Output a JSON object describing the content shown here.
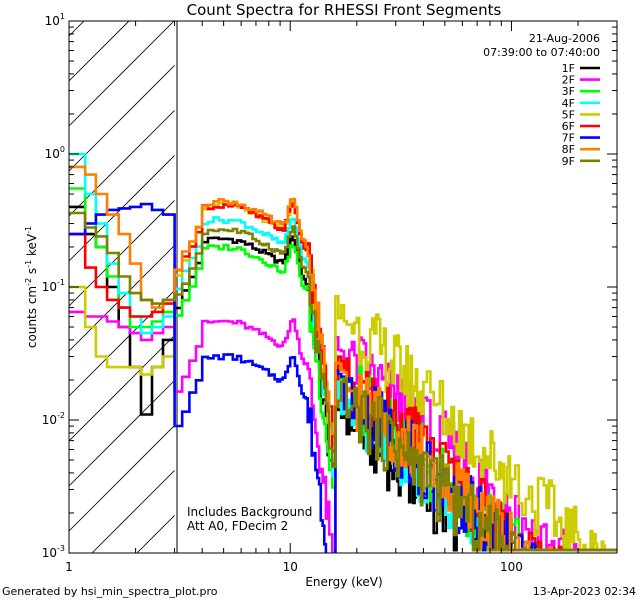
{
  "chart_data": {
    "type": "line",
    "title": "Count Spectra for RHESSI Front Segments",
    "xlabel": "Energy (keV)",
    "ylabel_parts": [
      "counts cm",
      "-2",
      " s",
      "-1",
      " keV",
      "-1"
    ],
    "x_scale": "log",
    "y_scale": "log",
    "xlim": [
      1,
      300
    ],
    "ylim": [
      0.001,
      10
    ],
    "x_tick_labels": [
      {
        "value": 1,
        "label": "1"
      },
      {
        "value": 10,
        "label": "10"
      },
      {
        "value": 100,
        "label": "100"
      }
    ],
    "y_tick_labels": [
      {
        "value": 0.001,
        "base": "10",
        "exp": "-3"
      },
      {
        "value": 0.01,
        "base": "10",
        "exp": "-2"
      },
      {
        "value": 0.1,
        "base": "10",
        "exp": "-1"
      },
      {
        "value": 1,
        "base": "10",
        "exp": "0"
      },
      {
        "value": 10,
        "base": "10",
        "exp": "1"
      }
    ],
    "hatched_region_kev": [
      1,
      3
    ],
    "date": "21-Aug-2006",
    "time_range": "07:39:00 to 07:40:00",
    "annotations": [
      "Includes Background",
      "Att A0, FDecim 2"
    ],
    "series": [
      {
        "name": "1F",
        "color": "#000000"
      },
      {
        "name": "2F",
        "color": "#ff00ff"
      },
      {
        "name": "3F",
        "color": "#00ff00"
      },
      {
        "name": "4F",
        "color": "#00ffff"
      },
      {
        "name": "5F",
        "color": "#cccc00"
      },
      {
        "name": "6F",
        "color": "#ff0000"
      },
      {
        "name": "7F",
        "color": "#0000ff"
      },
      {
        "name": "8F",
        "color": "#ff8000"
      },
      {
        "name": "9F",
        "color": "#808000"
      }
    ],
    "low_energy_kev": [
      1.12,
      1.25,
      1.4,
      1.58,
      1.78,
      2.0,
      2.24,
      2.51,
      2.82
    ],
    "low_energy_values": {
      "1F": [
        0.4,
        0.25,
        0.2,
        0.1,
        0.05,
        0.025,
        0.011,
        0.025,
        0.04
      ],
      "2F": [
        0.065,
        0.06,
        0.06,
        0.055,
        0.05,
        0.045,
        0.04,
        0.045,
        0.05
      ],
      "3F": [
        0.55,
        0.3,
        0.2,
        0.12,
        0.07,
        0.05,
        0.05,
        0.055,
        0.065
      ],
      "4F": [
        1.0,
        0.5,
        0.3,
        0.15,
        0.09,
        0.06,
        0.045,
        0.05,
        0.06
      ],
      "5F": [
        0.1,
        0.05,
        0.03,
        0.025,
        0.025,
        0.025,
        0.022,
        0.025,
        0.03
      ],
      "6F": [
        0.25,
        0.14,
        0.1,
        0.08,
        0.07,
        0.06,
        0.06,
        0.065,
        0.075
      ],
      "7F": [
        0.25,
        0.3,
        0.35,
        0.38,
        0.39,
        0.4,
        0.42,
        0.38,
        0.35
      ],
      "8F": [
        0.8,
        0.7,
        0.5,
        0.35,
        0.25,
        0.15,
        0.08,
        0.07,
        0.08
      ],
      "9F": [
        0.36,
        0.28,
        0.24,
        0.18,
        0.12,
        0.09,
        0.08,
        0.075,
        0.08
      ]
    },
    "approx_peak_values": {
      "1F": 0.23,
      "2F": 0.055,
      "3F": 0.2,
      "4F": 0.32,
      "5F": 0.41,
      "6F": 0.41,
      "7F": 0.03,
      "8F": 0.44,
      "9F": 0.27
    },
    "approx_value_at_40_kev": {
      "1F": 0.003,
      "2F": 0.009,
      "3F": 0.005,
      "4F": 0.004,
      "5F": 0.016,
      "6F": 0.006,
      "7F": 0.0045,
      "8F": 0.005,
      "9F": 0.004
    }
  },
  "footer": {
    "left": "Generated by hsi_min_spectra_plot.pro",
    "right": "13-Apr-2023 02:34"
  }
}
